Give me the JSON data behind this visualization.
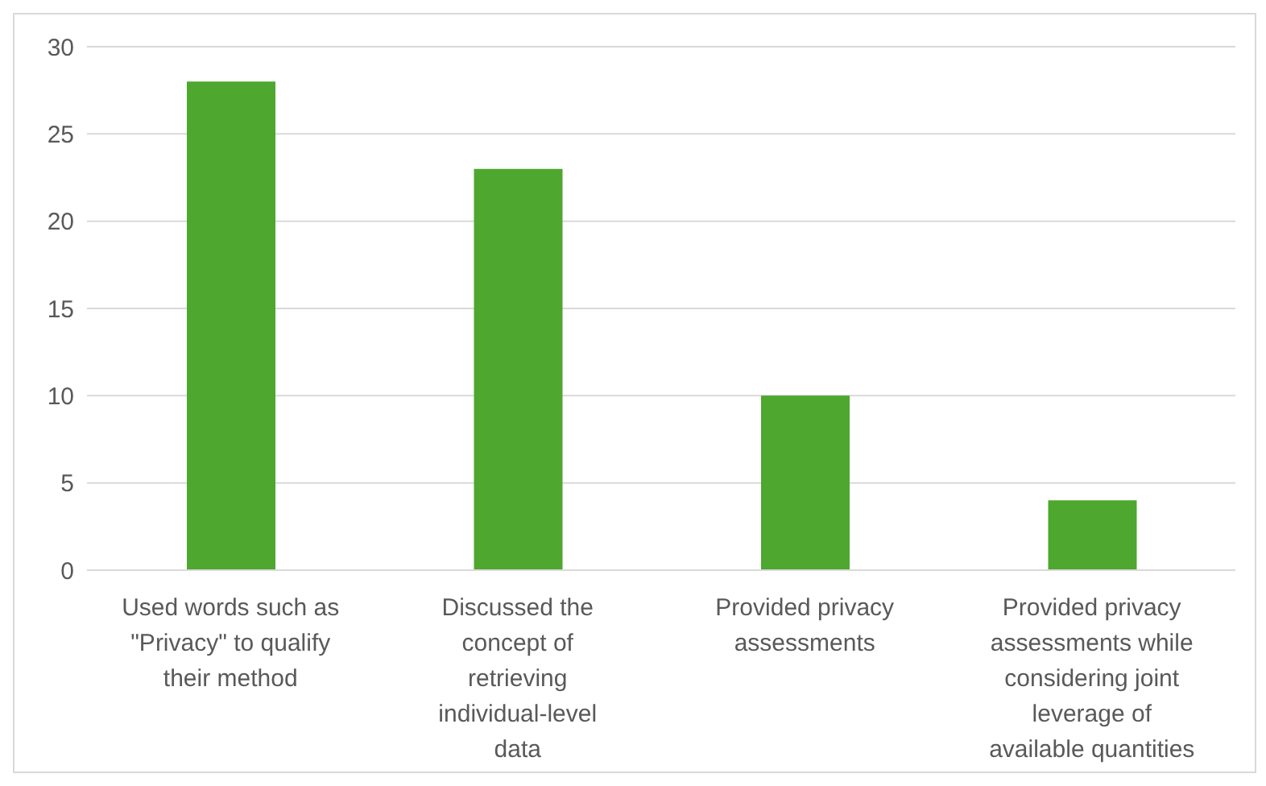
{
  "chart_data": {
    "type": "bar",
    "categories": [
      "Used words such as \"Privacy\" to qualify their method",
      "Discussed the concept of retrieving individual-level data",
      "Provided privacy assessments",
      "Provided privacy assessments while considering joint leverage of available quantities"
    ],
    "values": [
      28,
      23,
      10,
      4
    ],
    "color": "#4ea72e",
    "ylim": [
      0,
      30
    ],
    "yticks": [
      0,
      5,
      10,
      15,
      20,
      25,
      30
    ],
    "grid": "y"
  }
}
